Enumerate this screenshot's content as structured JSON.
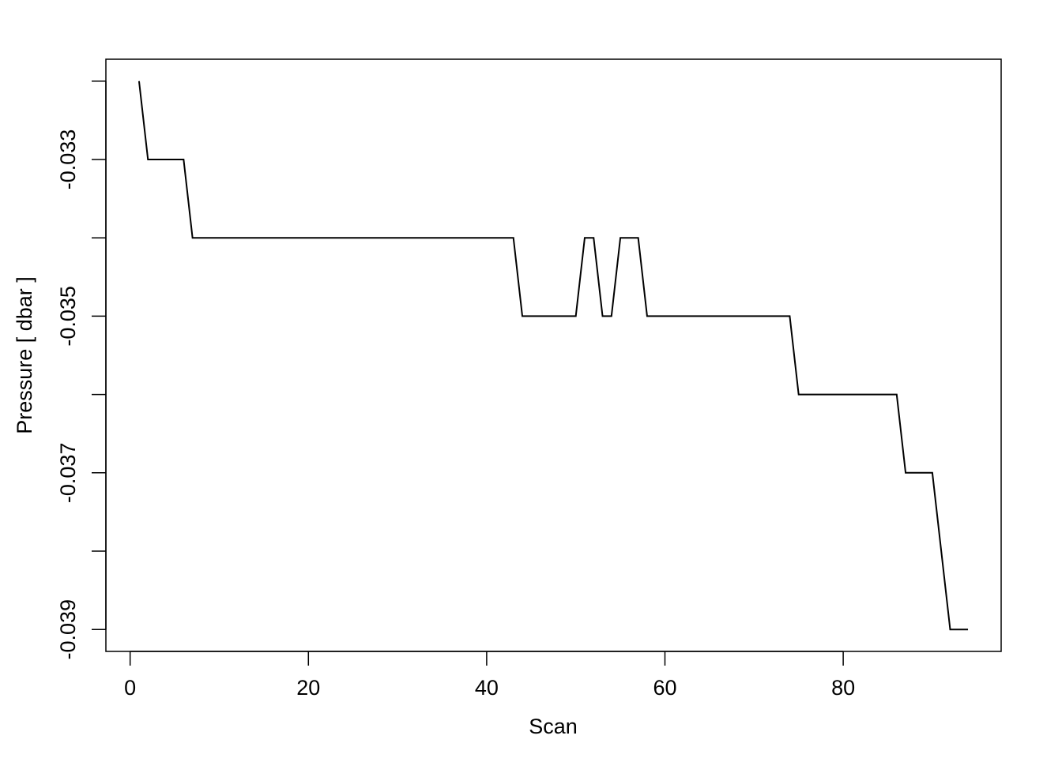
{
  "chart_data": {
    "type": "line",
    "xlabel": "Scan",
    "ylabel": "Pressure [ dbar ]",
    "x": [
      1,
      2,
      3,
      4,
      5,
      6,
      7,
      8,
      9,
      10,
      11,
      12,
      13,
      14,
      15,
      16,
      17,
      18,
      19,
      20,
      21,
      22,
      23,
      24,
      25,
      26,
      27,
      28,
      29,
      30,
      31,
      32,
      33,
      34,
      35,
      36,
      37,
      38,
      39,
      40,
      41,
      42,
      43,
      44,
      45,
      46,
      47,
      48,
      49,
      50,
      51,
      52,
      53,
      54,
      55,
      56,
      57,
      58,
      59,
      60,
      61,
      62,
      63,
      64,
      65,
      66,
      67,
      68,
      69,
      70,
      71,
      72,
      73,
      74,
      75,
      76,
      77,
      78,
      79,
      80,
      81,
      82,
      83,
      84,
      85,
      86,
      87,
      88,
      89,
      90,
      91,
      92,
      93,
      94
    ],
    "series": [
      {
        "color": "#000000",
        "values": [
          -0.032,
          -0.033,
          -0.033,
          -0.033,
          -0.033,
          -0.033,
          -0.034,
          -0.034,
          -0.034,
          -0.034,
          -0.034,
          -0.034,
          -0.034,
          -0.034,
          -0.034,
          -0.034,
          -0.034,
          -0.034,
          -0.034,
          -0.034,
          -0.034,
          -0.034,
          -0.034,
          -0.034,
          -0.034,
          -0.034,
          -0.034,
          -0.034,
          -0.034,
          -0.034,
          -0.034,
          -0.034,
          -0.034,
          -0.034,
          -0.034,
          -0.034,
          -0.034,
          -0.034,
          -0.034,
          -0.034,
          -0.034,
          -0.034,
          -0.034,
          -0.035,
          -0.035,
          -0.035,
          -0.035,
          -0.035,
          -0.035,
          -0.035,
          -0.034,
          -0.034,
          -0.035,
          -0.035,
          -0.034,
          -0.034,
          -0.034,
          -0.035,
          -0.035,
          -0.035,
          -0.035,
          -0.035,
          -0.035,
          -0.035,
          -0.035,
          -0.035,
          -0.035,
          -0.035,
          -0.035,
          -0.035,
          -0.035,
          -0.035,
          -0.035,
          -0.035,
          -0.036,
          -0.036,
          -0.036,
          -0.036,
          -0.036,
          -0.036,
          -0.036,
          -0.036,
          -0.036,
          -0.036,
          -0.036,
          -0.036,
          -0.037,
          -0.037,
          -0.037,
          -0.037,
          -0.038,
          -0.039,
          -0.039,
          -0.039
        ]
      }
    ],
    "xlim": [
      -2.72,
      97.72
    ],
    "xticks": [
      0,
      20,
      40,
      60,
      80
    ],
    "ylim": [
      -0.03928,
      -0.03172
    ],
    "yticks": [
      -0.033,
      -0.035,
      -0.037,
      -0.039
    ],
    "yticks_unlabeled": [
      -0.032,
      -0.034,
      -0.036,
      -0.038
    ]
  }
}
